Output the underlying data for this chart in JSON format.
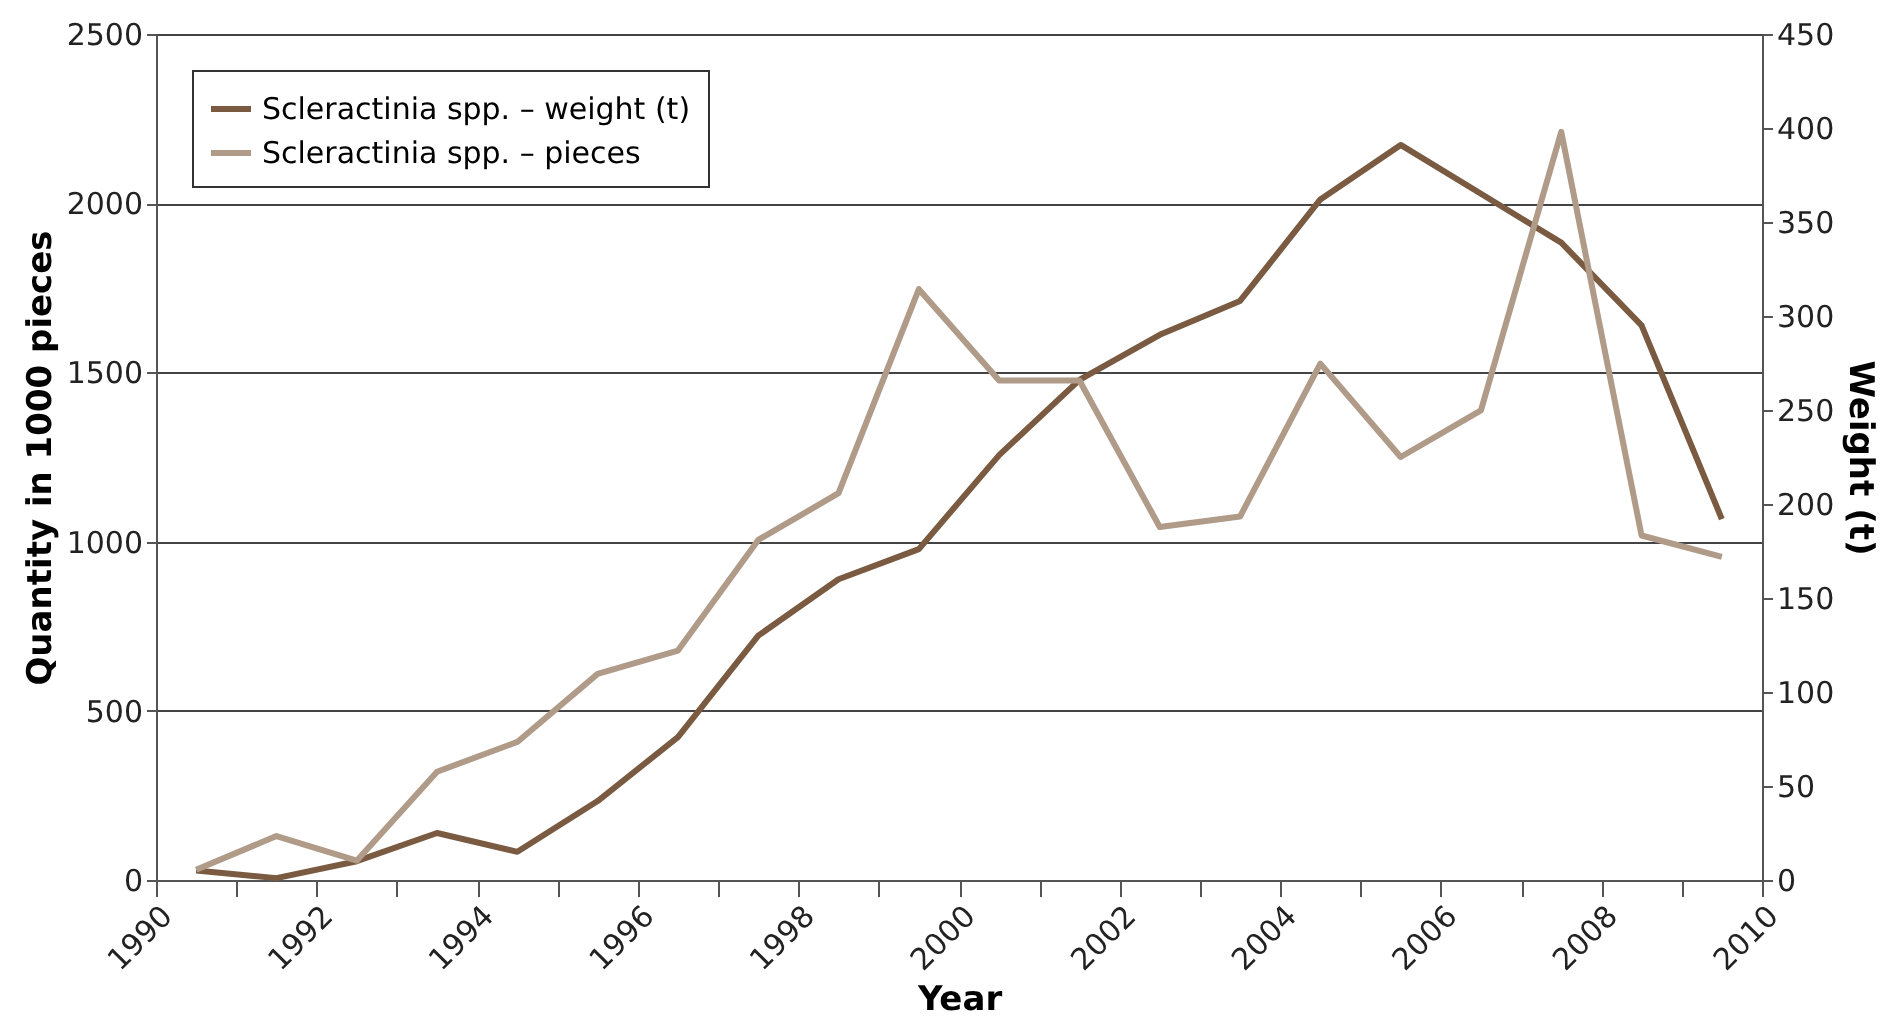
{
  "chart_data": {
    "type": "line",
    "xlabel": "Year",
    "ylabel": "Quantity in 1000 pieces",
    "y2label": "Weight (t)",
    "x": [
      1990.5,
      1991.5,
      1992.5,
      1993.5,
      1994.5,
      1995.5,
      1996.5,
      1997.5,
      1998.5,
      1999.5,
      2000.5,
      2001.5,
      2002.5,
      2003.5,
      2004.5,
      2005.5,
      2006.5,
      2007.5,
      2008.5,
      2009.5
    ],
    "series": [
      {
        "name": "Scleractinia spp. – weight (t)",
        "color": "#7a5a40",
        "axis": "y2",
        "values": [
          5,
          1,
          10,
          25,
          15,
          42,
          76,
          130,
          160,
          176,
          226,
          266,
          290,
          308,
          362,
          391,
          365,
          339,
          295,
          192
        ]
      },
      {
        "name": "Scleractinia spp. – pieces",
        "color": "#b09a88",
        "values": [
          30,
          130,
          57,
          320,
          408,
          609,
          678,
          1005,
          1143,
          1746,
          1476,
          1476,
          1043,
          1074,
          1526,
          1250,
          1388,
          2211,
          1018,
          955
        ]
      }
    ],
    "xlim": [
      1990,
      2010
    ],
    "xticks": [
      1990,
      {
        "value": 1991,
        "label": null
      },
      1992,
      {
        "value": 1993,
        "label": null
      },
      1994,
      {
        "value": 1995,
        "label": null
      },
      1996,
      {
        "value": 1997,
        "label": null
      },
      1998,
      {
        "value": 1999,
        "label": null
      },
      2000,
      {
        "value": 2001,
        "label": null
      },
      2002,
      {
        "value": 2003,
        "label": null
      },
      2004,
      {
        "value": 2005,
        "label": null
      },
      2006,
      {
        "value": 2007,
        "label": null
      },
      2008,
      {
        "value": 2009,
        "label": null
      },
      2010
    ],
    "ylim": [
      0,
      2500
    ],
    "yticks": [
      0,
      500,
      1000,
      1500,
      2000,
      2500
    ],
    "y2lim": [
      0,
      450
    ],
    "y2ticks": [
      0,
      50,
      100,
      150,
      200,
      250,
      300,
      350,
      400,
      450
    ],
    "grid": "y",
    "legend": "top left",
    "marker": "none",
    "line_style": "solid"
  }
}
